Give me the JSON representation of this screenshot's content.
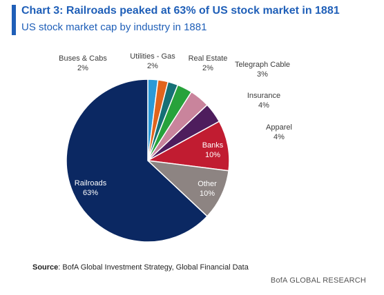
{
  "header": {
    "title": "Chart 3: Railroads peaked at 63% of US stock market in 1881",
    "subtitle": "US stock market cap by industry in 1881"
  },
  "chart_data": {
    "type": "pie",
    "title": "Chart 3: Railroads peaked at 63% of US stock market in 1881",
    "subtitle": "US stock market cap by industry in 1881",
    "unit": "%",
    "slices": [
      {
        "name": "Buses & Cabs",
        "value": 2,
        "label": "2%",
        "color": "#2a9ad8"
      },
      {
        "name": "Utilities - Gas",
        "value": 2,
        "label": "2%",
        "color": "#e0641d"
      },
      {
        "name": "Real Estate",
        "value": 2,
        "label": "2%",
        "color": "#157076"
      },
      {
        "name": "Telegraph Cable",
        "value": 3,
        "label": "3%",
        "color": "#27a23b"
      },
      {
        "name": "Insurance",
        "value": 4,
        "label": "4%",
        "color": "#c9849c"
      },
      {
        "name": "Apparel",
        "value": 4,
        "label": "4%",
        "color": "#4e1d5d"
      },
      {
        "name": "Banks",
        "value": 10,
        "label": "10%",
        "color": "#c11c31"
      },
      {
        "name": "Other",
        "value": 10,
        "label": "10%",
        "color": "#8d8482"
      },
      {
        "name": "Railroads",
        "value": 63,
        "label": "63%",
        "color": "#0b2862"
      }
    ]
  },
  "footer": {
    "source_label": "Source",
    "source_text": ": BofA Global Investment Strategy, Global Financial Data",
    "brand": "BofA GLOBAL RESEARCH"
  }
}
